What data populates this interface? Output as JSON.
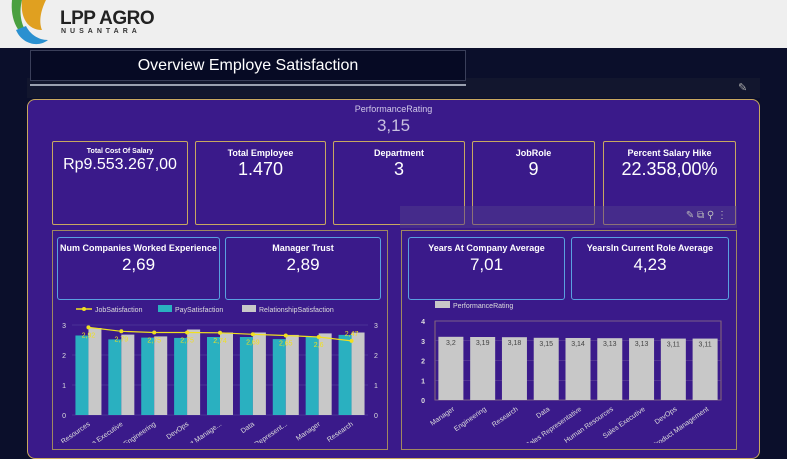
{
  "header": {
    "brand": "LPP AGRO",
    "brand_sub": "NUSANTARA"
  },
  "title": "Overview Employe Satisfaction",
  "performance": {
    "label": "PerformanceRating",
    "value": "3,15"
  },
  "kpis": [
    {
      "label": "Total Cost Of Salary",
      "value": "Rp9.553.267,00"
    },
    {
      "label": "Total Employee",
      "value": "1.470"
    },
    {
      "label": "Department",
      "value": "3"
    },
    {
      "label": "JobRole",
      "value": "9"
    },
    {
      "label": "Percent Salary Hike",
      "value": "22.358,00%"
    }
  ],
  "left_cards": [
    {
      "label": "Num Companies Worked Experience",
      "value": "2,69"
    },
    {
      "label": "Manager Trust",
      "value": "2,89"
    }
  ],
  "right_cards": [
    {
      "label": "Years At Company Average",
      "value": "7,01"
    },
    {
      "label": "YearsIn Current Role Average",
      "value": "4,23"
    }
  ],
  "colors": {
    "panel": "#3a1a8a",
    "border": "#c8a860",
    "teal": "#2ab0c0",
    "gray": "#c8c8c8",
    "yellow": "#f0e020"
  },
  "chart_data": [
    {
      "type": "bar",
      "categories": [
        "Human Resources",
        "Sales Executive",
        "Engineering",
        "DevOps",
        "Product Manage...",
        "Data",
        "Sales Represent...",
        "Manager",
        "Research"
      ],
      "series": [
        {
          "name": "JobSatisfaction",
          "type": "line",
          "values": [
            2.92,
            2.79,
            2.75,
            2.75,
            2.74,
            2.69,
            2.65,
            2.6,
            2.47
          ],
          "labels": [
            "2,92",
            "2,79",
            "2,75",
            "2,75",
            "2,74",
            "2,69",
            "2,65",
            "2,6",
            "2,47"
          ]
        },
        {
          "name": "PaySatisfaction",
          "values": [
            2.65,
            2.52,
            2.58,
            2.57,
            2.6,
            2.6,
            2.53,
            2.6,
            2.67
          ]
        },
        {
          "name": "RelationshipSatisfaction",
          "values": [
            2.9,
            2.68,
            2.62,
            2.85,
            2.75,
            2.75,
            2.67,
            2.72,
            2.75
          ]
        }
      ],
      "ylim": [
        0,
        3
      ],
      "yticks": [
        "0",
        "1",
        "2",
        "3"
      ],
      "legend": "top"
    },
    {
      "type": "bar",
      "categories": [
        "Manager",
        "Engineering",
        "Research",
        "Data",
        "Sales Representative",
        "Human Resources",
        "Sales Executive",
        "DevOps",
        "Product Management"
      ],
      "series": [
        {
          "name": "PerformanceRating",
          "values": [
            3.2,
            3.19,
            3.18,
            3.15,
            3.14,
            3.13,
            3.13,
            3.11,
            3.11
          ],
          "labels": [
            "3,2",
            "3,19",
            "3,18",
            "3,15",
            "3,14",
            "3,13",
            "3,13",
            "3,11",
            "3,11"
          ]
        }
      ],
      "ylim": [
        0,
        4
      ],
      "yticks": [
        "0",
        "1",
        "2",
        "3",
        "4"
      ],
      "legend": "top-left"
    }
  ]
}
